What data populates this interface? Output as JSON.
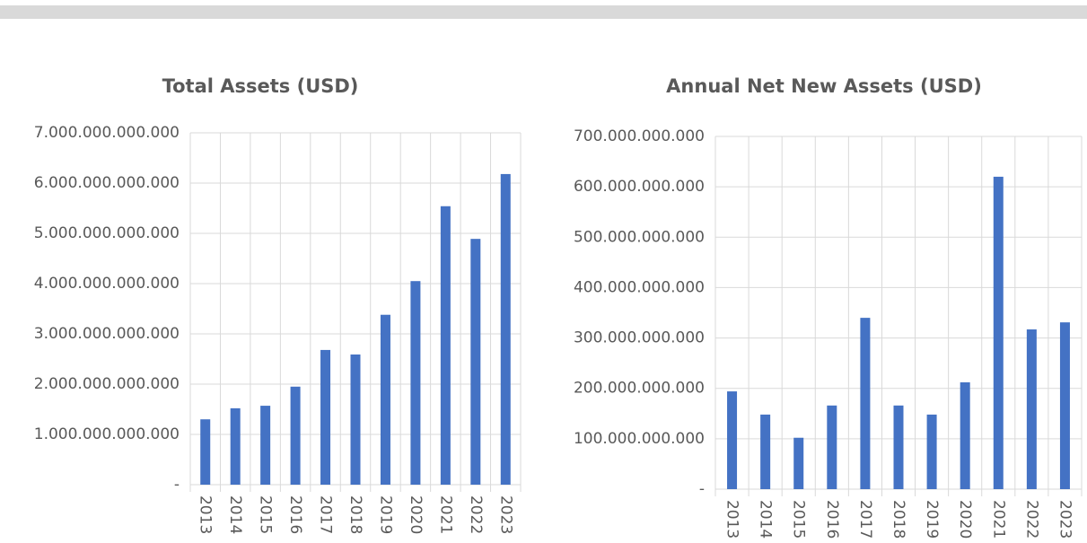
{
  "chart_data": [
    {
      "type": "bar",
      "title": "Total Assets (USD)",
      "categories": [
        "2013",
        "2014",
        "2015",
        "2016",
        "2017",
        "2018",
        "2019",
        "2020",
        "2021",
        "2022",
        "2023"
      ],
      "values": [
        1300000000000,
        1520000000000,
        1570000000000,
        1950000000000,
        2680000000000,
        2590000000000,
        3380000000000,
        4050000000000,
        5540000000000,
        4890000000000,
        6180000000000
      ],
      "color": "#4472c4",
      "ylim": [
        0,
        7000000000000
      ],
      "yticks": [
        {
          "value": 0,
          "label": "-"
        },
        {
          "value": 1000000000000,
          "label": "1.000.000.000.000"
        },
        {
          "value": 2000000000000,
          "label": "2.000.000.000.000"
        },
        {
          "value": 3000000000000,
          "label": "3.000.000.000.000"
        },
        {
          "value": 4000000000000,
          "label": "4.000.000.000.000"
        },
        {
          "value": 5000000000000,
          "label": "5.000.000.000.000"
        },
        {
          "value": 6000000000000,
          "label": "6.000.000.000.000"
        },
        {
          "value": 7000000000000,
          "label": "7.000.000.000.000"
        }
      ],
      "grid": true
    },
    {
      "type": "bar",
      "title": "Annual Net New Assets (USD)",
      "categories": [
        "2013",
        "2014",
        "2015",
        "2016",
        "2017",
        "2018",
        "2019",
        "2020",
        "2021",
        "2022",
        "2023"
      ],
      "values": [
        194000000000,
        148000000000,
        102000000000,
        166000000000,
        340000000000,
        166000000000,
        148000000000,
        212000000000,
        620000000000,
        317000000000,
        331000000000
      ],
      "color": "#4472c4",
      "ylim": [
        0,
        700000000000
      ],
      "yticks": [
        {
          "value": 0,
          "label": "-"
        },
        {
          "value": 100000000000,
          "label": "100.000.000.000"
        },
        {
          "value": 200000000000,
          "label": "200.000.000.000"
        },
        {
          "value": 300000000000,
          "label": "300.000.000.000"
        },
        {
          "value": 400000000000,
          "label": "400.000.000.000"
        },
        {
          "value": 500000000000,
          "label": "500.000.000.000"
        },
        {
          "value": 600000000000,
          "label": "600.000.000.000"
        },
        {
          "value": 700000000000,
          "label": "700.000.000.000"
        }
      ],
      "grid": true
    }
  ]
}
